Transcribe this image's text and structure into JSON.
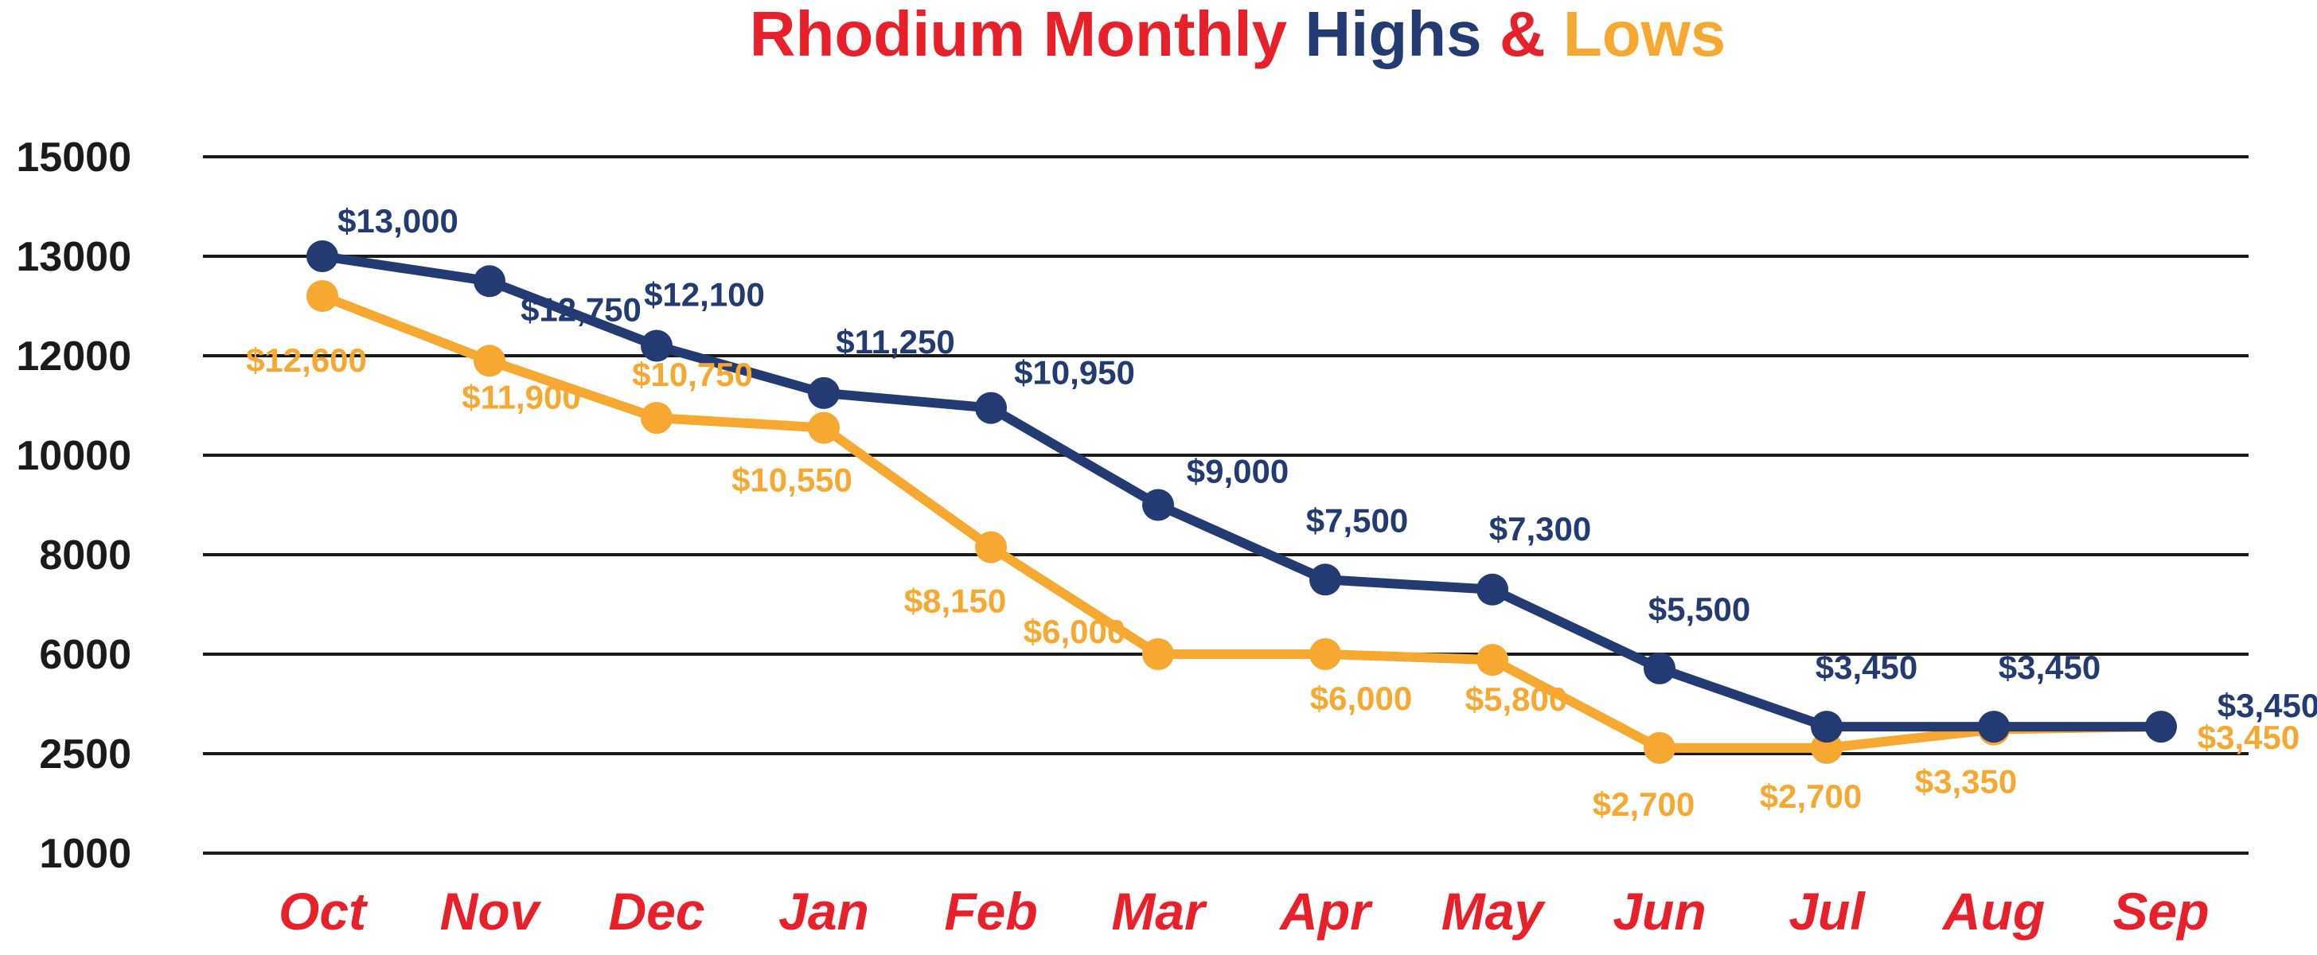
{
  "chart_data": {
    "type": "line",
    "title_parts": [
      {
        "text": "Rhodium Monthly ",
        "color": "#e8202a"
      },
      {
        "text": "Highs",
        "color": "#233a72"
      },
      {
        "text": " & ",
        "color": "#e8202a"
      },
      {
        "text": "Lows",
        "color": "#f7a830"
      }
    ],
    "categories": [
      "Oct",
      "Nov",
      "Dec",
      "Jan",
      "Feb",
      "Mar",
      "Apr",
      "May",
      "Jun",
      "Jul",
      "Aug",
      "Sep"
    ],
    "y_ticks": [
      "15000",
      "13000",
      "12000",
      "10000",
      "8000",
      "6000",
      "2500",
      "1000"
    ],
    "y_scale": "non-uniform (gridlines evenly spaced at tick values)",
    "grid": true,
    "series": [
      {
        "name": "Highs",
        "color": "#233a72",
        "values": [
          13000,
          12750,
          12100,
          11250,
          10950,
          9000,
          7500,
          7300,
          5500,
          3450,
          3450,
          3450
        ],
        "labels": [
          "$13,000",
          "$12,750",
          "$12,100",
          "$11,250",
          "$10,950",
          "$9,000",
          "$7,500",
          "$7,300",
          "$5,500",
          "$3,450",
          "$3,450",
          "$3,450"
        ]
      },
      {
        "name": "Lows",
        "color": "#f7a830",
        "values": [
          12600,
          11900,
          10750,
          10550,
          8150,
          6000,
          6000,
          5800,
          2700,
          2700,
          3350,
          3450
        ],
        "labels": [
          "$12,600",
          "$11,900",
          "$10,750",
          "$10,550",
          "$8,150",
          "$6,000",
          "$6,000",
          "$5,800",
          "$2,700",
          "$2,700",
          "$3,350",
          "$3,450"
        ]
      }
    ],
    "colors": {
      "category_label": "#e8202a",
      "tick_label": "#1a1a1a",
      "gridline": "#1a1a1a"
    }
  }
}
